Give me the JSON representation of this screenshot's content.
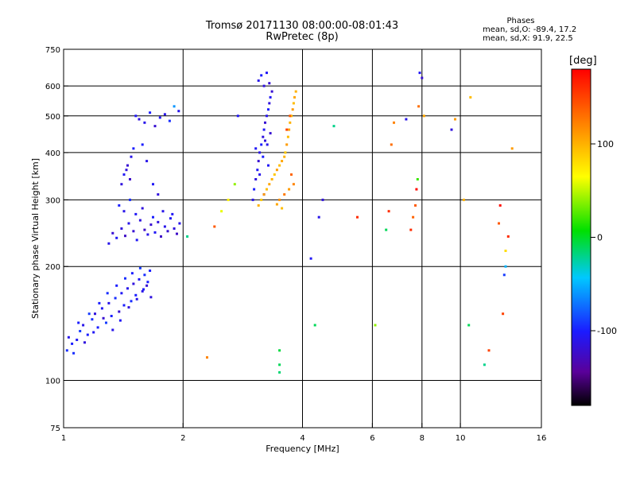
{
  "header": {
    "title_line1": "Tromsø 20171130 08:00:00-08:01:43",
    "title_line2": "RwPretec (8p)",
    "stats_title": "Phases",
    "stats_o": "mean, sd,O: -89.4, 17.2",
    "stats_x": "mean, sd,X:  91.9, 22.5"
  },
  "colorbar": {
    "title": "[deg]",
    "ticks": [
      {
        "value": 100,
        "label": "100"
      },
      {
        "value": 0,
        "label": "0"
      },
      {
        "value": -100,
        "label": "-100"
      }
    ],
    "range": [
      -180,
      180
    ]
  },
  "chart_data": {
    "type": "scatter",
    "xlabel": "Frequency [MHz]",
    "ylabel": "Stationary phase Virtual Height [km]",
    "xscale": "log2",
    "yscale": "log",
    "xlim": [
      1,
      16
    ],
    "ylim": [
      75,
      750
    ],
    "x_ticks": [
      {
        "value": 1,
        "label": "1"
      },
      {
        "value": 2,
        "label": "2"
      },
      {
        "value": 4,
        "label": "4"
      },
      {
        "value": 6,
        "label": "6"
      },
      {
        "value": 8,
        "label": "8"
      },
      {
        "value": 10,
        "label": "10"
      },
      {
        "value": 16,
        "label": "16"
      }
    ],
    "x_gridlines": [
      2,
      4,
      6,
      8,
      10
    ],
    "y_ticks": [
      {
        "value": 75,
        "label": "75"
      },
      {
        "value": 100,
        "label": "100"
      },
      {
        "value": 200,
        "label": "200"
      },
      {
        "value": 300,
        "label": "300"
      },
      {
        "value": 400,
        "label": "400"
      },
      {
        "value": 500,
        "label": "500"
      },
      {
        "value": 600,
        "label": "600"
      },
      {
        "value": 750,
        "label": "750"
      }
    ],
    "y_gridlines": [
      100,
      200,
      300,
      400,
      500,
      600
    ],
    "grid": true,
    "color_encoding": "phase [deg]",
    "points": [
      [
        1.02,
        120,
        -95
      ],
      [
        1.05,
        125,
        -100
      ],
      [
        1.08,
        128,
        -105
      ],
      [
        1.1,
        135,
        -90
      ],
      [
        1.12,
        140,
        -110
      ],
      [
        1.15,
        132,
        -100
      ],
      [
        1.18,
        145,
        -95
      ],
      [
        1.2,
        150,
        -115
      ],
      [
        1.22,
        138,
        -100
      ],
      [
        1.25,
        155,
        -105
      ],
      [
        1.28,
        142,
        -90
      ],
      [
        1.3,
        160,
        -110
      ],
      [
        1.32,
        148,
        -100
      ],
      [
        1.35,
        165,
        -95
      ],
      [
        1.38,
        152,
        -120
      ],
      [
        1.4,
        170,
        -105
      ],
      [
        1.42,
        158,
        -100
      ],
      [
        1.45,
        175,
        -110
      ],
      [
        1.48,
        162,
        -95
      ],
      [
        1.5,
        180,
        -115
      ],
      [
        1.52,
        168,
        -100
      ],
      [
        1.55,
        185,
        -105
      ],
      [
        1.58,
        172,
        -110
      ],
      [
        1.6,
        190,
        -95
      ],
      [
        1.62,
        178,
        -120
      ],
      [
        1.65,
        195,
        -100
      ],
      [
        1.03,
        130,
        -110
      ],
      [
        1.06,
        118,
        -95
      ],
      [
        1.09,
        142,
        -100
      ],
      [
        1.13,
        126,
        -115
      ],
      [
        1.16,
        150,
        -90
      ],
      [
        1.19,
        134,
        -105
      ],
      [
        1.23,
        160,
        -100
      ],
      [
        1.26,
        146,
        -120
      ],
      [
        1.29,
        170,
        -95
      ],
      [
        1.33,
        136,
        -110
      ],
      [
        1.36,
        178,
        -100
      ],
      [
        1.39,
        144,
        -105
      ],
      [
        1.43,
        186,
        -95
      ],
      [
        1.46,
        156,
        -115
      ],
      [
        1.49,
        192,
        -100
      ],
      [
        1.53,
        164,
        -110
      ],
      [
        1.56,
        198,
        -90
      ],
      [
        1.59,
        174,
        -105
      ],
      [
        1.63,
        182,
        -100
      ],
      [
        1.66,
        166,
        -115
      ],
      [
        1.3,
        230,
        -110
      ],
      [
        1.33,
        245,
        -120
      ],
      [
        1.36,
        238,
        -105
      ],
      [
        1.4,
        252,
        -115
      ],
      [
        1.43,
        241,
        -125
      ],
      [
        1.46,
        260,
        -110
      ],
      [
        1.5,
        248,
        -120
      ],
      [
        1.53,
        235,
        -105
      ],
      [
        1.56,
        265,
        -115
      ],
      [
        1.6,
        250,
        -125
      ],
      [
        1.63,
        243,
        -110
      ],
      [
        1.66,
        258,
        -120
      ],
      [
        1.7,
        246,
        -105
      ],
      [
        1.73,
        262,
        -115
      ],
      [
        1.76,
        240,
        -125
      ],
      [
        1.8,
        255,
        -110
      ],
      [
        1.83,
        248,
        -120
      ],
      [
        1.86,
        268,
        -105
      ],
      [
        1.9,
        252,
        -115
      ],
      [
        1.93,
        244,
        -125
      ],
      [
        1.96,
        260,
        -110
      ],
      [
        1.38,
        290,
        -100
      ],
      [
        1.42,
        280,
        -110
      ],
      [
        1.47,
        300,
        -95
      ],
      [
        1.52,
        275,
        -105
      ],
      [
        1.58,
        285,
        -115
      ],
      [
        1.68,
        270,
        -100
      ],
      [
        1.78,
        280,
        -110
      ],
      [
        1.88,
        275,
        -105
      ],
      [
        1.4,
        330,
        -115
      ],
      [
        1.42,
        350,
        -105
      ],
      [
        1.45,
        370,
        -120
      ],
      [
        1.48,
        390,
        -110
      ],
      [
        1.5,
        410,
        -100
      ],
      [
        1.44,
        360,
        -115
      ],
      [
        1.47,
        340,
        -125
      ],
      [
        1.52,
        500,
        -105
      ],
      [
        1.55,
        490,
        -115
      ],
      [
        1.6,
        480,
        -110
      ],
      [
        1.65,
        510,
        -100
      ],
      [
        1.7,
        470,
        -120
      ],
      [
        1.75,
        495,
        -105
      ],
      [
        1.8,
        505,
        -110
      ],
      [
        1.85,
        485,
        -95
      ],
      [
        1.9,
        530,
        -60
      ],
      [
        1.95,
        515,
        -110
      ],
      [
        1.58,
        420,
        -100
      ],
      [
        1.62,
        380,
        -110
      ],
      [
        1.68,
        330,
        -105
      ],
      [
        1.73,
        310,
        -115
      ],
      [
        2.05,
        240,
        -20
      ],
      [
        2.3,
        115,
        120
      ],
      [
        2.4,
        255,
        140
      ],
      [
        2.5,
        280,
        60
      ],
      [
        2.6,
        300,
        70
      ],
      [
        2.7,
        330,
        40
      ],
      [
        2.75,
        500,
        -105
      ],
      [
        3.0,
        300,
        -110
      ],
      [
        3.02,
        320,
        -100
      ],
      [
        3.05,
        340,
        -115
      ],
      [
        3.08,
        360,
        -105
      ],
      [
        3.1,
        380,
        -120
      ],
      [
        3.12,
        400,
        -110
      ],
      [
        3.15,
        420,
        -100
      ],
      [
        3.18,
        440,
        -115
      ],
      [
        3.2,
        460,
        -105
      ],
      [
        3.22,
        480,
        -120
      ],
      [
        3.25,
        500,
        -110
      ],
      [
        3.28,
        520,
        -100
      ],
      [
        3.3,
        540,
        -115
      ],
      [
        3.32,
        560,
        -105
      ],
      [
        3.35,
        580,
        -120
      ],
      [
        3.1,
        620,
        -110
      ],
      [
        3.15,
        640,
        -100
      ],
      [
        3.2,
        600,
        -115
      ],
      [
        3.25,
        650,
        -105
      ],
      [
        3.3,
        610,
        -120
      ],
      [
        3.05,
        410,
        -105
      ],
      [
        3.12,
        350,
        -110
      ],
      [
        3.18,
        390,
        -100
      ],
      [
        3.22,
        430,
        -115
      ],
      [
        3.28,
        370,
        -105
      ],
      [
        3.32,
        450,
        -120
      ],
      [
        3.26,
        420,
        -110
      ],
      [
        3.2,
        310,
        -105
      ],
      [
        3.1,
        290,
        100
      ],
      [
        3.15,
        300,
        90
      ],
      [
        3.2,
        310,
        110
      ],
      [
        3.25,
        320,
        95
      ],
      [
        3.3,
        330,
        105
      ],
      [
        3.35,
        340,
        100
      ],
      [
        3.4,
        350,
        90
      ],
      [
        3.45,
        360,
        110
      ],
      [
        3.5,
        370,
        95
      ],
      [
        3.55,
        380,
        105
      ],
      [
        3.6,
        390,
        100
      ],
      [
        3.62,
        400,
        90
      ],
      [
        3.65,
        420,
        110
      ],
      [
        3.68,
        440,
        95
      ],
      [
        3.7,
        460,
        105
      ],
      [
        3.72,
        480,
        100
      ],
      [
        3.75,
        500,
        90
      ],
      [
        3.78,
        520,
        110
      ],
      [
        3.8,
        540,
        95
      ],
      [
        3.82,
        560,
        105
      ],
      [
        3.85,
        580,
        100
      ],
      [
        3.5,
        300,
        115
      ],
      [
        3.6,
        310,
        125
      ],
      [
        3.7,
        320,
        110
      ],
      [
        3.8,
        330,
        120
      ],
      [
        3.75,
        350,
        135
      ],
      [
        3.65,
        460,
        150
      ],
      [
        3.72,
        500,
        140
      ],
      [
        3.55,
        285,
        95
      ],
      [
        3.45,
        292,
        105
      ],
      [
        3.5,
        110,
        -10
      ],
      [
        3.5,
        105,
        -15
      ],
      [
        3.5,
        120,
        -5
      ],
      [
        4.2,
        210,
        -105
      ],
      [
        4.3,
        140,
        -10
      ],
      [
        4.4,
        270,
        -110
      ],
      [
        4.5,
        300,
        -115
      ],
      [
        4.8,
        470,
        -20
      ],
      [
        5.5,
        270,
        160
      ],
      [
        6.1,
        140,
        40
      ],
      [
        6.5,
        250,
        -10
      ],
      [
        6.6,
        280,
        160
      ],
      [
        6.7,
        420,
        130
      ],
      [
        6.8,
        480,
        120
      ],
      [
        7.3,
        490,
        -110
      ],
      [
        7.5,
        250,
        160
      ],
      [
        7.6,
        270,
        135
      ],
      [
        7.7,
        290,
        140
      ],
      [
        7.75,
        320,
        175
      ],
      [
        7.8,
        340,
        20
      ],
      [
        7.85,
        530,
        130
      ],
      [
        7.9,
        650,
        -105
      ],
      [
        8.0,
        630,
        -120
      ],
      [
        8.1,
        500,
        105
      ],
      [
        9.5,
        460,
        -115
      ],
      [
        9.7,
        490,
        110
      ],
      [
        10.2,
        300,
        100
      ],
      [
        10.5,
        140,
        -10
      ],
      [
        10.6,
        560,
        95
      ],
      [
        11.5,
        110,
        -20
      ],
      [
        11.8,
        120,
        150
      ],
      [
        12.5,
        260,
        140
      ],
      [
        12.6,
        290,
        175
      ],
      [
        12.8,
        150,
        150
      ],
      [
        12.9,
        190,
        -90
      ],
      [
        13.0,
        200,
        -50
      ],
      [
        13.0,
        220,
        80
      ],
      [
        13.2,
        240,
        160
      ],
      [
        13.5,
        410,
        110
      ]
    ]
  }
}
